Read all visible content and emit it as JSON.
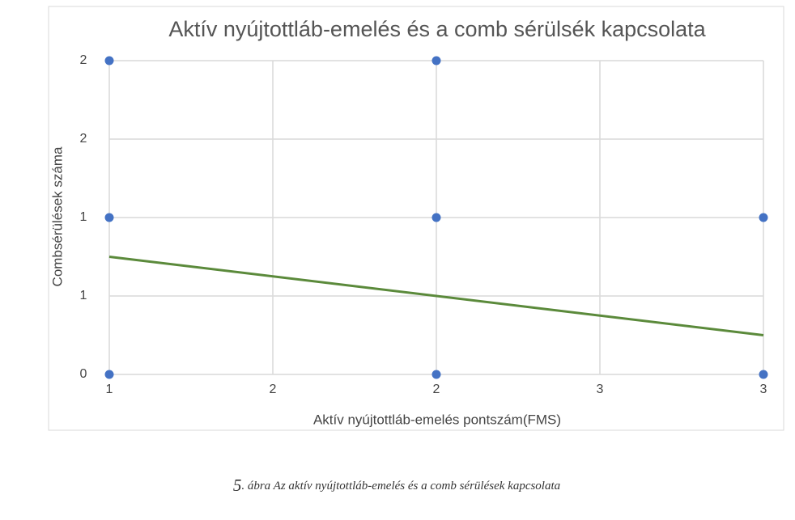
{
  "chart_data": {
    "type": "scatter",
    "title": "Aktív nyújtottláb-emelés és a comb sérülsék kapcsolata",
    "x_label": "Aktív nyújtottláb-emelés pontszám(FMS)",
    "y_label": "Combsérülések száma",
    "xlim": [
      1,
      3
    ],
    "ylim": [
      0,
      2
    ],
    "xticks": [
      1,
      {
        "value": 1.5,
        "label": "2"
      },
      2,
      {
        "value": 2.5,
        "label": "3"
      },
      3
    ],
    "yticks": [
      0,
      {
        "value": 0.5,
        "label": "1"
      },
      1,
      {
        "value": 1.5,
        "label": "2"
      },
      2
    ],
    "grid": true,
    "series": [
      {
        "type": "scatter",
        "color": "#4472c4",
        "x": [
          1,
          1,
          1,
          2,
          2,
          2,
          3,
          3
        ],
        "values": [
          2,
          1,
          0,
          2,
          1,
          0,
          1,
          0
        ]
      },
      {
        "type": "line",
        "color": "#5b8a3b",
        "x": [
          1,
          3
        ],
        "values": [
          0.75,
          0.25
        ]
      }
    ]
  },
  "caption": {
    "number": "5",
    "text": ". ábra Az aktív nyújtottláb-emelés és a comb sérülések kapcsolata"
  }
}
